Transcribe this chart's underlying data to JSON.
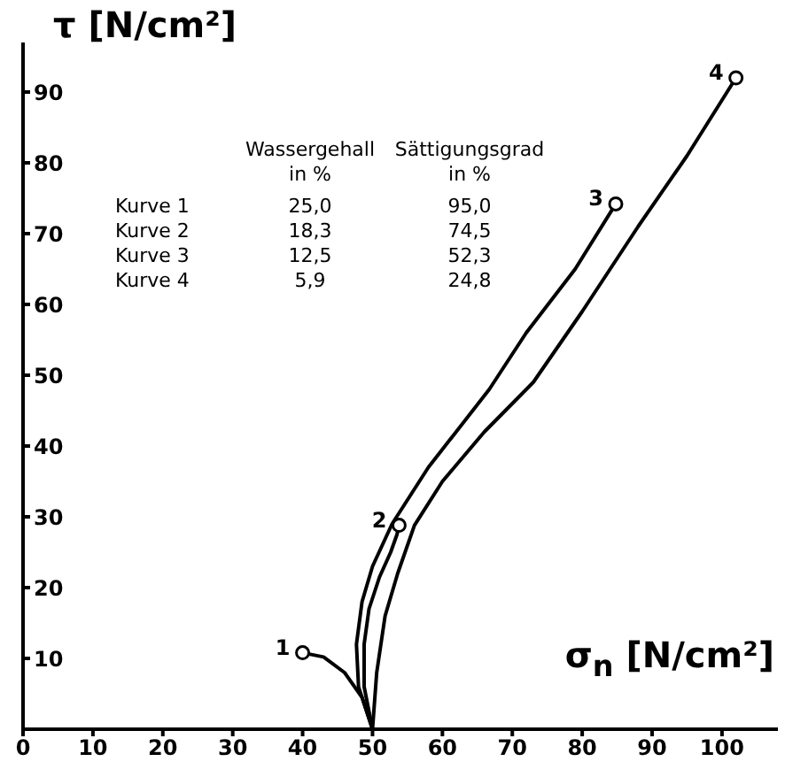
{
  "chart_data": {
    "type": "line",
    "xlabel": "σ$_{n}$ [N/cm²]",
    "ylabel": "τ [N/cm²]",
    "xlim": [
      0,
      108
    ],
    "xticks": [
      0,
      10,
      20,
      30,
      40,
      50,
      60,
      70,
      80,
      90,
      100
    ],
    "ylim": [
      0,
      97
    ],
    "yticks": [
      10,
      20,
      30,
      40,
      50,
      60,
      70,
      80,
      90
    ],
    "grid": false,
    "legend": false,
    "line_style": "solid",
    "series": [
      {
        "name": "1",
        "color": "#000000",
        "x": [
          50,
          48.5,
          46,
          43,
          40
        ],
        "values": [
          0,
          4.5,
          8,
          10.2,
          10.8
        ]
      },
      {
        "name": "2",
        "color": "#000000",
        "x": [
          50,
          48.8,
          48.8,
          49.5,
          51,
          52.6,
          53.5,
          53.8
        ],
        "values": [
          0,
          6,
          12,
          17,
          21.5,
          25,
          27.5,
          28.8
        ]
      },
      {
        "name": "3",
        "color": "#000000",
        "x": [
          50,
          48,
          47.7,
          48.5,
          50,
          52.8,
          58,
          66.7,
          72,
          79,
          84.8
        ],
        "values": [
          0,
          6,
          12,
          18,
          23,
          29,
          37,
          48,
          56,
          65,
          74.2
        ]
      },
      {
        "name": "4",
        "color": "#000000",
        "x": [
          50,
          50.6,
          51.8,
          53.6,
          56,
          60,
          66,
          73,
          80,
          88,
          95,
          102
        ],
        "values": [
          0,
          8,
          16,
          22,
          28.8,
          35,
          42,
          49,
          59,
          71,
          81,
          92
        ]
      }
    ],
    "annotations": [
      "Wassergehall",
      "Sättigungsgrad",
      "in %",
      "in %",
      "Kurve 1",
      "25,0",
      "95,0",
      "Kurve 2",
      "18,3",
      "74,5",
      "Kurve 3",
      "12,5",
      "52,3",
      "Kurve 4",
      "5,9",
      "24,8"
    ]
  }
}
